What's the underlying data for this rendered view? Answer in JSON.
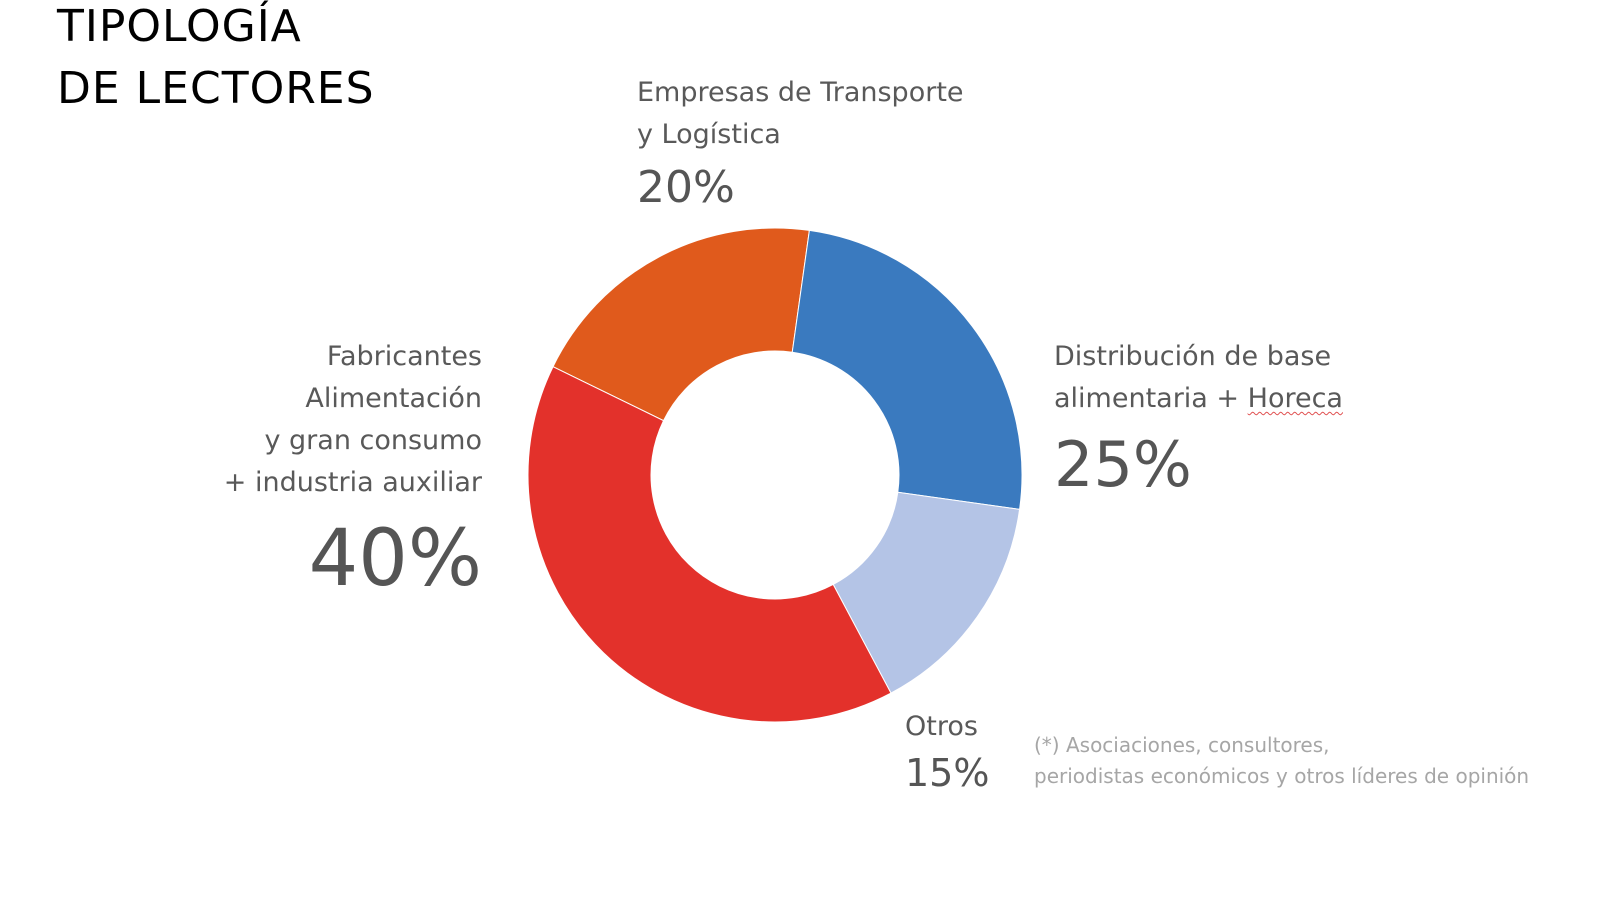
{
  "title": {
    "line1": "TIPOLOGÍA",
    "line2": "DE LECTORES"
  },
  "labels": {
    "transporte": {
      "line1": "Empresas de Transporte",
      "line2": "y Logística",
      "pct": "20%"
    },
    "distribucion": {
      "line1": "Distribución de base",
      "line2_a": "alimentaria + ",
      "line2_b": "Horeca",
      "pct": "25%"
    },
    "otros": {
      "line1": "Otros",
      "pct": "15%"
    },
    "fabricantes": {
      "line1": "Fabricantes",
      "line2": "Alimentación",
      "line3": "y gran consumo",
      "line4": "+ industria auxiliar",
      "pct": "40%"
    }
  },
  "note": {
    "line1": "(*) Asociaciones, consultores,",
    "line2": "periodistas económicos y otros líderes de opinión"
  },
  "chart_data": {
    "type": "pie",
    "variant": "donut",
    "title": "TIPOLOGÍA DE LECTORES",
    "categories": [
      "Empresas de Transporte y Logística",
      "Distribución de base alimentaria + Horeca",
      "Otros",
      "Fabricantes Alimentación y gran consumo + industria auxiliar"
    ],
    "values": [
      20,
      25,
      15,
      40
    ],
    "unit": "%",
    "colors": [
      "#e05a1c",
      "#3a7abf",
      "#b4c4e6",
      "#e3312b"
    ],
    "legend": "none (direct labels)"
  }
}
